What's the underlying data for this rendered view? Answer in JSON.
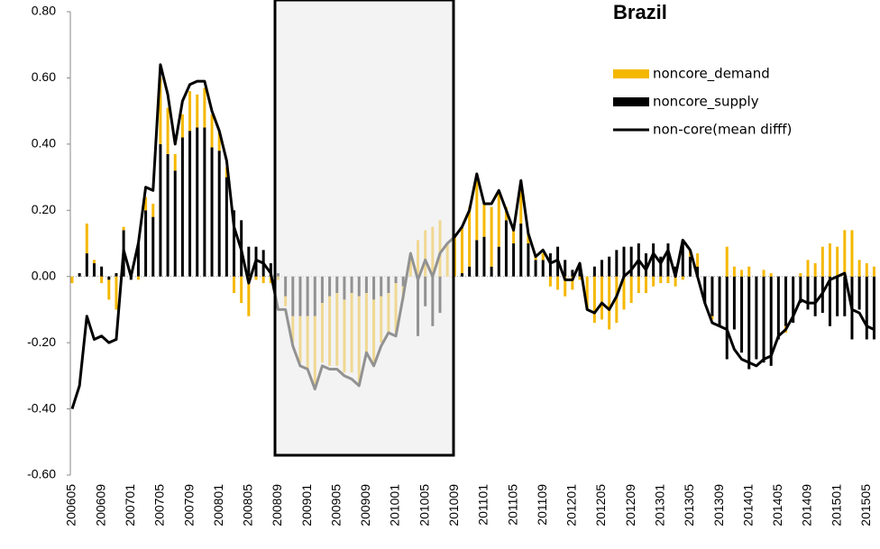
{
  "chart_data": {
    "type": "bar",
    "title": "Brazil",
    "stacked": true,
    "categories": [
      "200605",
      null,
      null,
      null,
      "200609",
      null,
      null,
      null,
      "200701",
      null,
      null,
      null,
      "200705",
      null,
      null,
      null,
      "200709",
      null,
      null,
      null,
      "200801",
      null,
      null,
      null,
      "200805",
      null,
      null,
      null,
      "200809",
      null,
      null,
      null,
      "200901",
      null,
      null,
      null,
      "200905",
      null,
      null,
      null,
      "200909",
      null,
      null,
      null,
      "201001",
      null,
      null,
      null,
      "201005",
      null,
      null,
      null,
      "201009",
      null,
      null,
      null,
      "201101",
      null,
      null,
      null,
      "201105",
      null,
      null,
      null,
      "201109",
      null,
      null,
      null,
      "201201",
      null,
      null,
      null,
      "201205",
      null,
      null,
      null,
      "201209",
      null,
      null,
      null,
      "201301",
      null,
      null,
      null,
      "201305",
      null,
      null,
      null,
      "201309",
      null,
      null,
      null,
      "201401",
      null,
      null,
      null,
      "201405",
      null,
      null,
      null,
      "201409",
      null,
      null,
      null,
      "201501",
      null,
      null,
      null,
      "201505",
      null
    ],
    "series": [
      {
        "name": "noncore_demand",
        "color": "#f5b800",
        "values": [
          -0.02,
          0,
          0.09,
          0.01,
          -0.02,
          -0.06,
          -0.1,
          0.01,
          0.02,
          -0.01,
          0.04,
          0.04,
          0.2,
          0.14,
          0.05,
          0.07,
          0.12,
          0.1,
          0.12,
          0.1,
          0.06,
          0.03,
          -0.05,
          -0.08,
          -0.12,
          -0.01,
          -0.02,
          -0.02,
          -0.01,
          -0.03,
          -0.08,
          -0.14,
          -0.16,
          -0.22,
          -0.18,
          -0.21,
          -0.22,
          -0.22,
          -0.24,
          -0.26,
          -0.18,
          -0.19,
          -0.14,
          -0.12,
          -0.15,
          -0.04,
          0.07,
          0.11,
          0.14,
          0.15,
          0.17,
          0.1,
          0.12,
          0.14,
          0.18,
          0.2,
          0.1,
          0.18,
          0.17,
          0.04,
          0.04,
          0.12,
          0.03,
          0.01,
          0.02,
          -0.03,
          -0.04,
          -0.06,
          -0.04,
          -0.01,
          -0.1,
          -0.14,
          -0.13,
          -0.16,
          -0.14,
          -0.1,
          -0.08,
          -0.05,
          -0.05,
          -0.03,
          -0.02,
          -0.02,
          -0.03,
          -0.01,
          0.02,
          0.04,
          0.0,
          -0.01,
          0.0,
          0.09,
          0.03,
          0.02,
          0.03,
          0.0,
          0.02,
          0.01,
          0.0,
          -0.02,
          0.0,
          0.01,
          0.05,
          0.04,
          0.09,
          0.1,
          0.09,
          0.14,
          0.14,
          0.05,
          0.04,
          0.03
        ]
      },
      {
        "name": "noncore_supply",
        "color": "#000000",
        "values": [
          0,
          0.01,
          0.07,
          0.04,
          0.03,
          -0.01,
          0.01,
          0.14,
          -0.01,
          0.1,
          0.2,
          0.18,
          0.4,
          0.37,
          0.32,
          0.42,
          0.44,
          0.45,
          0.45,
          0.39,
          0.38,
          0.3,
          0.2,
          0.17,
          0.09,
          0.09,
          0.08,
          0.04,
          0.01,
          -0.06,
          -0.12,
          -0.12,
          -0.12,
          -0.12,
          -0.08,
          -0.06,
          -0.05,
          -0.07,
          -0.05,
          -0.06,
          -0.05,
          -0.07,
          -0.06,
          -0.05,
          -0.02,
          -0.03,
          0.0,
          -0.18,
          -0.09,
          -0.15,
          -0.11,
          0.0,
          0.0,
          0.01,
          0.03,
          0.11,
          0.12,
          0.03,
          0.09,
          0.17,
          0.1,
          0.16,
          0.1,
          0.05,
          0.05,
          0.07,
          0.09,
          0.05,
          0.02,
          0.04,
          0.0,
          0.03,
          0.05,
          0.06,
          0.08,
          0.09,
          0.09,
          0.1,
          0.07,
          0.1,
          0.06,
          0.1,
          0.03,
          0.11,
          0.06,
          0.03,
          -0.08,
          -0.12,
          -0.15,
          -0.25,
          -0.16,
          -0.23,
          -0.28,
          -0.25,
          -0.26,
          -0.27,
          -0.19,
          -0.15,
          -0.14,
          -0.08,
          -0.1,
          -0.12,
          -0.11,
          -0.15,
          -0.12,
          -0.12,
          -0.19,
          -0.1,
          -0.19,
          -0.19
        ]
      },
      {
        "name": "non-core(mean difff)",
        "color": "#000000",
        "type": "line",
        "values": [
          -0.4,
          -0.33,
          -0.12,
          -0.19,
          -0.18,
          -0.2,
          -0.19,
          0.08,
          0.0,
          0.1,
          0.27,
          0.26,
          0.64,
          0.55,
          0.4,
          0.53,
          0.58,
          0.59,
          0.59,
          0.5,
          0.44,
          0.35,
          0.15,
          0.08,
          -0.02,
          0.05,
          0.04,
          0.01,
          -0.1,
          -0.1,
          -0.21,
          -0.27,
          -0.28,
          -0.34,
          -0.27,
          -0.28,
          -0.28,
          -0.3,
          -0.31,
          -0.33,
          -0.23,
          -0.27,
          -0.21,
          -0.17,
          -0.18,
          -0.06,
          0.07,
          -0.01,
          0.05,
          0.0,
          0.07,
          0.1,
          0.12,
          0.15,
          0.2,
          0.31,
          0.22,
          0.22,
          0.26,
          0.2,
          0.14,
          0.29,
          0.13,
          0.06,
          0.08,
          0.04,
          0.05,
          -0.01,
          -0.01,
          0.04,
          -0.1,
          -0.11,
          -0.08,
          -0.1,
          -0.06,
          0.0,
          0.02,
          0.05,
          0.02,
          0.07,
          0.04,
          0.08,
          0.0,
          0.11,
          0.08,
          0.0,
          -0.08,
          -0.14,
          -0.15,
          -0.16,
          -0.22,
          -0.25,
          -0.26,
          -0.27,
          -0.25,
          -0.24,
          -0.18,
          -0.16,
          -0.12,
          -0.07,
          -0.08,
          -0.08,
          -0.05,
          -0.01,
          0.0,
          0.01,
          -0.1,
          -0.11,
          -0.15,
          -0.16
        ]
      }
    ],
    "ylim": [
      -0.6,
      0.8
    ],
    "yticks": [
      {
        "value": -0.6,
        "label": "-0.60"
      },
      {
        "value": -0.4,
        "label": "-0.40"
      },
      {
        "value": -0.2,
        "label": "-0.20"
      },
      {
        "value": 0,
        "label": "0.00"
      },
      {
        "value": 0.2,
        "label": "0.20"
      },
      {
        "value": 0.4,
        "label": "0.40"
      },
      {
        "value": 0.6,
        "label": "0.60"
      },
      {
        "value": 0.8,
        "label": "0.80"
      }
    ],
    "legend": "upper right"
  }
}
